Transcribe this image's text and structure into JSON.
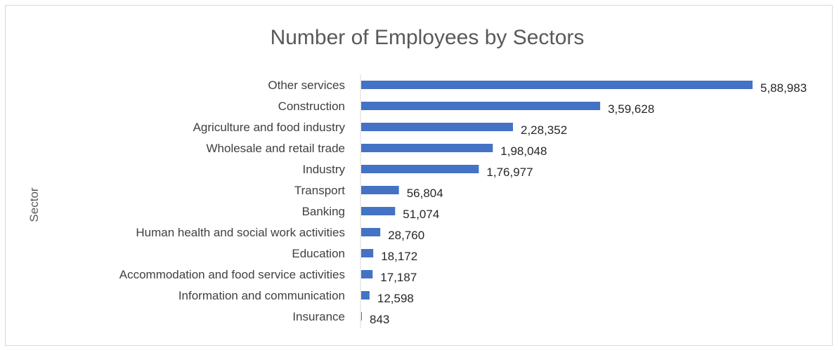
{
  "chart_data": {
    "type": "bar",
    "orientation": "horizontal",
    "title": "Number of Employees by Sectors",
    "ylabel": "Sector",
    "xlabel": "",
    "categories": [
      "Other services",
      "Construction",
      "Agriculture and food industry",
      "Wholesale and retail trade",
      "Industry",
      "Transport",
      "Banking",
      "Human health and social work activities",
      "Education",
      "Accommodation and food service activities",
      "Information and communication",
      "Insurance"
    ],
    "values": [
      588983,
      359628,
      228352,
      198048,
      176977,
      56804,
      51074,
      28760,
      18172,
      17187,
      12598,
      843
    ],
    "data_labels": [
      "5,88,983",
      "3,59,628",
      "2,28,352",
      "1,98,048",
      "1,76,977",
      "56,804",
      "51,074",
      "28,760",
      "18,172",
      "17,187",
      "12,598",
      "843"
    ],
    "xlim": [
      0,
      588983
    ],
    "bar_color": "#4472C4",
    "legend": "none",
    "grid": false
  }
}
